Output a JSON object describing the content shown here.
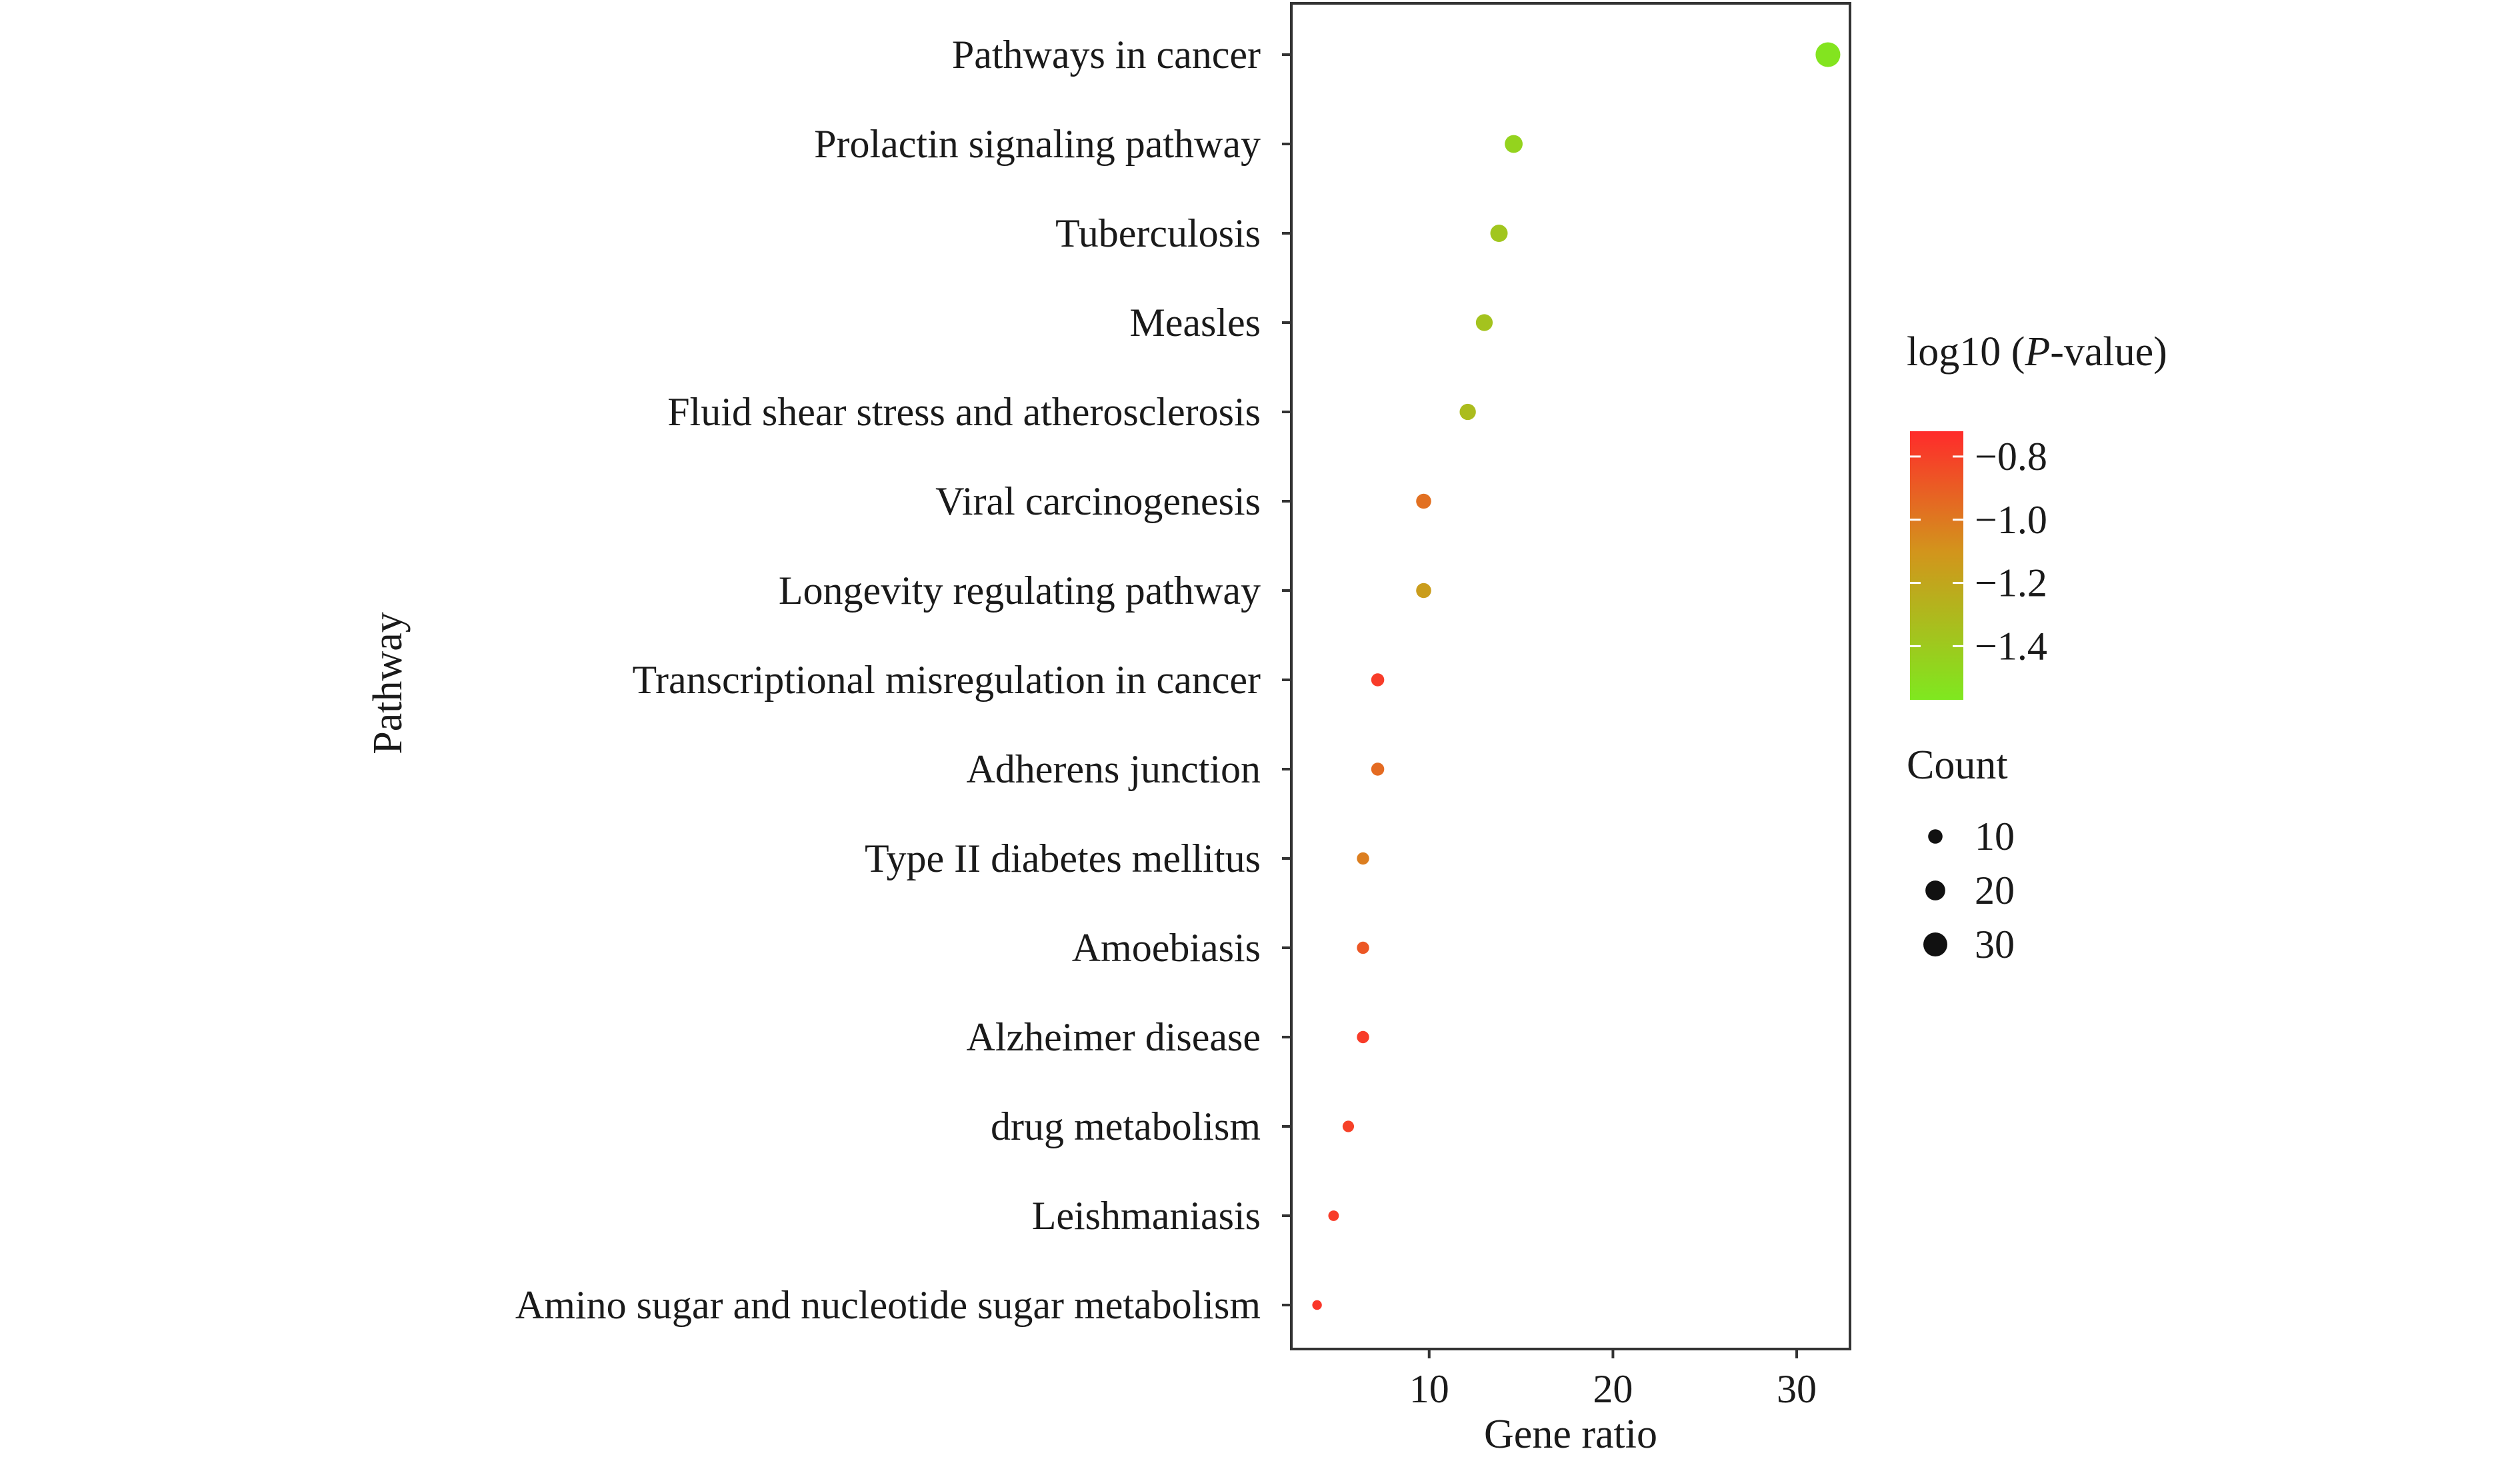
{
  "chart_data": {
    "type": "scatter",
    "xlabel": "Gene ratio",
    "ylabel": "Pathway",
    "xlim": [
      2.5,
      32.9
    ],
    "xticks": [
      10,
      20,
      30
    ],
    "grid": false,
    "categories": [
      "Pathways in cancer",
      "Prolactin signaling pathway",
      "Tuberculosis",
      "Measles",
      "Fluid shear stress and atherosclerosis",
      "Viral carcinogenesis",
      "Longevity regulating pathway",
      "Transcriptional misregulation in cancer",
      "Adherens junction",
      "Type II diabetes mellitus",
      "Amoebiasis",
      "Alzheimer disease",
      "drug metabolism",
      "Leishmaniasis",
      "Amino sugar and nucleotide sugar metabolism"
    ],
    "points": [
      {
        "x": 31.7,
        "count": 32,
        "color_value": -1.55
      },
      {
        "x": 14.6,
        "count": 16,
        "color_value": -1.45
      },
      {
        "x": 13.8,
        "count": 15,
        "color_value": -1.38
      },
      {
        "x": 13.0,
        "count": 14,
        "color_value": -1.36
      },
      {
        "x": 12.1,
        "count": 13,
        "color_value": -1.32
      },
      {
        "x": 9.7,
        "count": 11,
        "color_value": -0.97
      },
      {
        "x": 9.7,
        "count": 11,
        "color_value": -1.15
      },
      {
        "x": 7.2,
        "count": 8,
        "color_value": -0.78
      },
      {
        "x": 7.2,
        "count": 8,
        "color_value": -0.95
      },
      {
        "x": 6.4,
        "count": 7,
        "color_value": -1.02
      },
      {
        "x": 6.4,
        "count": 7,
        "color_value": -0.88
      },
      {
        "x": 6.4,
        "count": 7,
        "color_value": -0.78
      },
      {
        "x": 5.6,
        "count": 6,
        "color_value": -0.8
      },
      {
        "x": 4.8,
        "count": 5,
        "color_value": -0.78
      },
      {
        "x": 3.9,
        "count": 4,
        "color_value": -0.76
      }
    ],
    "color_legend": {
      "title_prefix": "log10 (",
      "title_italic": "P",
      "title_suffix": "-value)",
      "ticks": [
        {
          "label": "−0.8",
          "value": -0.8
        },
        {
          "label": "−1.0",
          "value": -1.0
        },
        {
          "label": "−1.2",
          "value": -1.2
        },
        {
          "label": "−1.4",
          "value": -1.4
        }
      ],
      "range": [
        -0.72,
        -1.57
      ],
      "colors": {
        "high": "#ff2b2b",
        "mid": "#d2951c",
        "low": "#7fe81f"
      }
    },
    "size_legend": {
      "title": "Count",
      "items": [
        {
          "label": "10",
          "value": 10
        },
        {
          "label": "20",
          "value": 20
        },
        {
          "label": "30",
          "value": 30
        }
      ]
    },
    "legend_position": "right"
  }
}
